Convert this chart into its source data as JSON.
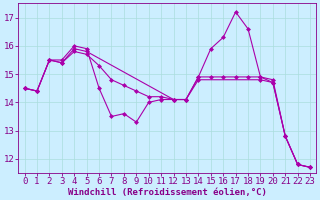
{
  "bg_color": "#cceeff",
  "line_color": "#aa00aa",
  "xlim": [
    -0.5,
    23.5
  ],
  "ylim": [
    11.5,
    17.5
  ],
  "xticks": [
    0,
    1,
    2,
    3,
    4,
    5,
    6,
    7,
    8,
    9,
    10,
    11,
    12,
    13,
    14,
    15,
    16,
    17,
    18,
    19,
    20,
    21,
    22,
    23
  ],
  "yticks": [
    12,
    13,
    14,
    15,
    16,
    17
  ],
  "grid_color": "#aadddd",
  "font_color": "#880088",
  "font_size": 6.5,
  "xlabel": "Windchill (Refroidissement éolien,°C)",
  "curve1_x": [
    0,
    1,
    2,
    3,
    4,
    5,
    6,
    7,
    8,
    9,
    10,
    11,
    12,
    13,
    14,
    15,
    16,
    17,
    18,
    19,
    20,
    21,
    22,
    23
  ],
  "curve1_y": [
    14.5,
    14.4,
    15.5,
    15.5,
    16.0,
    15.9,
    14.5,
    13.5,
    13.6,
    13.3,
    14.0,
    14.1,
    14.1,
    14.1,
    14.9,
    15.9,
    16.3,
    17.2,
    16.6,
    14.9,
    14.7,
    12.8,
    11.8,
    11.7
  ],
  "curve2_x": [
    0,
    1,
    2,
    3,
    4,
    5,
    12,
    13,
    14,
    19,
    20,
    21,
    22,
    23
  ],
  "curve2_y": [
    14.5,
    14.4,
    15.5,
    15.4,
    15.9,
    15.8,
    14.1,
    14.1,
    14.8,
    14.8,
    14.7,
    12.8,
    11.8,
    11.7
  ],
  "curve3_x": [
    0,
    1,
    2,
    3,
    4,
    5,
    6,
    7,
    8,
    9,
    10,
    11,
    12,
    13,
    14,
    15,
    16,
    17,
    18,
    19,
    20,
    21,
    22,
    23
  ],
  "curve3_y": [
    14.5,
    14.4,
    15.5,
    15.4,
    15.8,
    15.7,
    15.3,
    14.8,
    14.6,
    14.4,
    14.2,
    14.2,
    14.1,
    14.1,
    14.9,
    14.9,
    14.9,
    14.9,
    14.9,
    14.9,
    14.8,
    12.8,
    11.8,
    11.7
  ]
}
